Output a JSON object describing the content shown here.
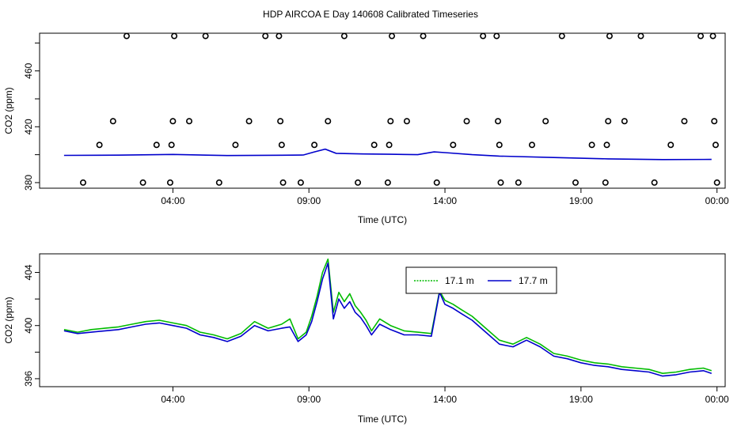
{
  "title": "HDP AIRCOA E  Day 140608  Calibrated Timeseries",
  "colors": {
    "series_a": "#00bb00",
    "series_b": "#0000cc",
    "points": "#000000",
    "axis": "#000000"
  },
  "chart_data": [
    {
      "type": "scatter",
      "xlabel": "Time (UTC)",
      "ylabel": "CO2 (ppm)",
      "x_ticks": [
        {
          "label": "04:00",
          "hour": 4
        },
        {
          "label": "09:00",
          "hour": 9
        },
        {
          "label": "14:00",
          "hour": 14
        },
        {
          "label": "19:00",
          "hour": 19
        },
        {
          "label": "00:00",
          "hour": 24
        }
      ],
      "y_ticks": [
        380,
        420,
        460
      ],
      "y_minor_ticks": [
        400,
        440,
        480
      ],
      "xlim": [
        -0.9,
        24.3
      ],
      "ylim": [
        376,
        487
      ],
      "points": [
        {
          "x": 0.7,
          "y": 380
        },
        {
          "x": 1.3,
          "y": 407
        },
        {
          "x": 1.8,
          "y": 424
        },
        {
          "x": 2.3,
          "y": 485
        },
        {
          "x": 2.9,
          "y": 380
        },
        {
          "x": 3.4,
          "y": 407
        },
        {
          "x": 3.9,
          "y": 380
        },
        {
          "x": 3.95,
          "y": 407
        },
        {
          "x": 4.0,
          "y": 424
        },
        {
          "x": 4.05,
          "y": 485
        },
        {
          "x": 4.6,
          "y": 424
        },
        {
          "x": 5.2,
          "y": 485
        },
        {
          "x": 5.7,
          "y": 380
        },
        {
          "x": 6.3,
          "y": 407
        },
        {
          "x": 6.8,
          "y": 424
        },
        {
          "x": 7.4,
          "y": 485
        },
        {
          "x": 7.9,
          "y": 485
        },
        {
          "x": 7.95,
          "y": 424
        },
        {
          "x": 8.0,
          "y": 407
        },
        {
          "x": 8.05,
          "y": 380
        },
        {
          "x": 8.7,
          "y": 380
        },
        {
          "x": 9.2,
          "y": 407
        },
        {
          "x": 9.7,
          "y": 424
        },
        {
          "x": 10.3,
          "y": 485
        },
        {
          "x": 10.8,
          "y": 380
        },
        {
          "x": 11.4,
          "y": 407
        },
        {
          "x": 11.9,
          "y": 380
        },
        {
          "x": 11.95,
          "y": 407
        },
        {
          "x": 12.0,
          "y": 424
        },
        {
          "x": 12.05,
          "y": 485
        },
        {
          "x": 12.6,
          "y": 424
        },
        {
          "x": 13.2,
          "y": 485
        },
        {
          "x": 13.7,
          "y": 380
        },
        {
          "x": 14.3,
          "y": 407
        },
        {
          "x": 14.8,
          "y": 424
        },
        {
          "x": 15.4,
          "y": 485
        },
        {
          "x": 15.9,
          "y": 485
        },
        {
          "x": 15.95,
          "y": 424
        },
        {
          "x": 16.0,
          "y": 407
        },
        {
          "x": 16.05,
          "y": 380
        },
        {
          "x": 16.7,
          "y": 380
        },
        {
          "x": 17.2,
          "y": 407
        },
        {
          "x": 17.7,
          "y": 424
        },
        {
          "x": 18.3,
          "y": 485
        },
        {
          "x": 18.8,
          "y": 380
        },
        {
          "x": 19.4,
          "y": 407
        },
        {
          "x": 19.9,
          "y": 380
        },
        {
          "x": 19.95,
          "y": 407
        },
        {
          "x": 20.0,
          "y": 424
        },
        {
          "x": 20.05,
          "y": 485
        },
        {
          "x": 20.6,
          "y": 424
        },
        {
          "x": 21.2,
          "y": 485
        },
        {
          "x": 21.7,
          "y": 380
        },
        {
          "x": 22.3,
          "y": 407
        },
        {
          "x": 22.8,
          "y": 424
        },
        {
          "x": 23.4,
          "y": 485
        },
        {
          "x": 23.85,
          "y": 485
        },
        {
          "x": 23.9,
          "y": 424
        },
        {
          "x": 23.95,
          "y": 407
        },
        {
          "x": 24.0,
          "y": 380
        }
      ],
      "line": {
        "x": [
          0,
          2,
          4,
          6,
          8,
          8.8,
          9.2,
          9.6,
          10,
          11,
          12,
          13,
          13.6,
          14,
          15,
          16,
          18,
          20,
          22,
          23.8
        ],
        "y": [
          399.5,
          399.7,
          400.2,
          399.4,
          399.6,
          399.8,
          402,
          404,
          401,
          400.5,
          400.3,
          400,
          402,
          401.5,
          400,
          399,
          398,
          397,
          396.5,
          396.6
        ]
      }
    },
    {
      "type": "line",
      "xlabel": "Time (UTC)",
      "ylabel": "CO2 (ppm)",
      "x_ticks": [
        {
          "label": "04:00",
          "hour": 4
        },
        {
          "label": "09:00",
          "hour": 9
        },
        {
          "label": "14:00",
          "hour": 14
        },
        {
          "label": "19:00",
          "hour": 19
        },
        {
          "label": "00:00",
          "hour": 24
        }
      ],
      "y_ticks": [
        396,
        400,
        404
      ],
      "y_minor_ticks": [
        398,
        402
      ],
      "xlim": [
        -0.9,
        24.3
      ],
      "ylim": [
        395.4,
        405.4
      ],
      "legend": {
        "placement": "top-center"
      },
      "series": [
        {
          "name": "17.1 m",
          "x": [
            0,
            0.5,
            1,
            1.5,
            2,
            2.5,
            3,
            3.5,
            4,
            4.5,
            5,
            5.5,
            6,
            6.5,
            7,
            7.5,
            8,
            8.3,
            8.6,
            8.9,
            9.1,
            9.3,
            9.5,
            9.7,
            9.9,
            10.1,
            10.3,
            10.5,
            10.7,
            10.9,
            11.1,
            11.3,
            11.6,
            12,
            12.5,
            13,
            13.5,
            13.8,
            14,
            14.3,
            14.6,
            15,
            15.5,
            16,
            16.5,
            17,
            17.5,
            18,
            18.5,
            19,
            19.5,
            20,
            20.5,
            21,
            21.5,
            22,
            22.5,
            23,
            23.5,
            23.8
          ],
          "y": [
            399.7,
            399.5,
            399.7,
            399.8,
            399.9,
            400.1,
            400.3,
            400.4,
            400.2,
            400.0,
            399.5,
            399.3,
            399.0,
            399.4,
            400.3,
            399.8,
            400.1,
            400.5,
            399.0,
            399.5,
            400.7,
            402.2,
            404.0,
            405.0,
            401.0,
            402.5,
            401.8,
            402.4,
            401.5,
            401.0,
            400.4,
            399.6,
            400.5,
            400.0,
            399.6,
            399.5,
            399.4,
            402.6,
            401.9,
            401.6,
            401.2,
            400.7,
            399.8,
            398.9,
            398.6,
            399.1,
            398.6,
            397.9,
            397.7,
            397.4,
            397.2,
            397.1,
            396.9,
            396.8,
            396.7,
            396.4,
            396.5,
            396.7,
            396.8,
            396.6
          ]
        },
        {
          "name": "17.7 m",
          "x": [
            0,
            0.5,
            1,
            1.5,
            2,
            2.5,
            3,
            3.5,
            4,
            4.5,
            5,
            5.5,
            6,
            6.5,
            7,
            7.5,
            8,
            8.3,
            8.6,
            8.9,
            9.1,
            9.3,
            9.5,
            9.7,
            9.9,
            10.1,
            10.3,
            10.5,
            10.7,
            10.9,
            11.1,
            11.3,
            11.6,
            12,
            12.5,
            13,
            13.5,
            13.8,
            14,
            14.3,
            14.6,
            15,
            15.5,
            16,
            16.5,
            17,
            17.5,
            18,
            18.5,
            19,
            19.5,
            20,
            20.5,
            21,
            21.5,
            22,
            22.5,
            23,
            23.5,
            23.8
          ],
          "y": [
            399.6,
            399.4,
            399.5,
            399.6,
            399.7,
            399.9,
            400.1,
            400.2,
            400.0,
            399.8,
            399.3,
            399.1,
            398.8,
            399.2,
            400.0,
            399.6,
            399.8,
            399.9,
            398.8,
            399.3,
            400.3,
            401.8,
            403.5,
            404.7,
            400.5,
            402.0,
            401.3,
            401.8,
            401.0,
            400.6,
            400.0,
            399.3,
            400.1,
            399.7,
            399.3,
            399.3,
            399.2,
            402.5,
            401.6,
            401.3,
            400.9,
            400.4,
            399.5,
            398.6,
            398.4,
            398.9,
            398.4,
            397.7,
            397.5,
            397.2,
            397.0,
            396.9,
            396.7,
            396.6,
            396.5,
            396.2,
            396.3,
            396.5,
            396.6,
            396.4
          ]
        }
      ]
    }
  ]
}
